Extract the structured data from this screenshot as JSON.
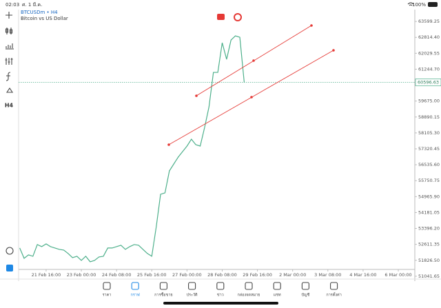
{
  "status_bar": {
    "time": "02:03",
    "date": "ศ. 1 มี.ค.",
    "battery": "100%"
  },
  "toolbar": {
    "timeframe": "H4"
  },
  "chart_data": {
    "type": "line",
    "title": "BTCUSDm • H4",
    "subtitle": "Bitcoin vs US Dollar",
    "color": "#4caf8a",
    "x": [
      "20 Feb 16:00",
      "20 Feb 20:00",
      "21 Feb 00:00",
      "21 Feb 04:00",
      "21 Feb 08:00",
      "21 Feb 12:00",
      "21 Feb 16:00",
      "21 Feb 20:00",
      "22 Feb 00:00",
      "22 Feb 04:00",
      "22 Feb 08:00",
      "22 Feb 12:00",
      "22 Feb 16:00",
      "22 Feb 20:00",
      "23 Feb 00:00",
      "23 Feb 04:00",
      "23 Feb 08:00",
      "23 Feb 12:00",
      "23 Feb 16:00",
      "23 Feb 20:00",
      "24 Feb 00:00",
      "24 Feb 04:00",
      "24 Feb 08:00",
      "24 Feb 12:00",
      "24 Feb 16:00",
      "24 Feb 20:00",
      "25 Feb 00:00",
      "25 Feb 04:00",
      "25 Feb 08:00",
      "25 Feb 12:00",
      "25 Feb 16:00",
      "25 Feb 20:00",
      "26 Feb 00:00",
      "26 Feb 04:00",
      "26 Feb 08:00",
      "26 Feb 12:00",
      "26 Feb 16:00",
      "26 Feb 20:00",
      "27 Feb 00:00",
      "27 Feb 04:00",
      "27 Feb 08:00",
      "27 Feb 12:00",
      "27 Feb 16:00",
      "27 Feb 20:00",
      "28 Feb 00:00",
      "28 Feb 04:00",
      "28 Feb 08:00",
      "28 Feb 12:00",
      "28 Feb 16:00",
      "28 Feb 20:00",
      "29 Feb 00:00",
      "29 Feb 04:00"
    ],
    "values": [
      52433,
      51924,
      52093,
      52025,
      52602,
      52501,
      52636,
      52501,
      52433,
      52365,
      52331,
      52161,
      51958,
      52025,
      51822,
      52025,
      51754,
      51822,
      51992,
      52025,
      52433,
      52433,
      52501,
      52569,
      52365,
      52501,
      52602,
      52569,
      52365,
      52161,
      52025,
      53451,
      55080,
      55148,
      56234,
      56573,
      56913,
      57184,
      57456,
      57795,
      57524,
      57456,
      58372,
      59391,
      61088,
      61088,
      62547,
      61733,
      62683,
      62886,
      62819,
      60597
    ],
    "current_price": 60596.63,
    "xlim": [
      "20 Feb 15:00",
      "6 Mar 15:00"
    ],
    "xticks": [
      "21 Feb 16:00",
      "23 Feb 00:00",
      "24 Feb 08:00",
      "25 Feb 16:00",
      "27 Feb 00:00",
      "28 Feb 08:00",
      "29 Feb 16:00",
      "2 Mar 00:00",
      "3 Mar 08:00",
      "4 Mar 16:00",
      "6 Mar 00:00"
    ],
    "ylim": [
      50800,
      64180
    ],
    "yticks": [
      {
        "value": 63599.25,
        "label": "63599.25"
      },
      {
        "value": 62814.4,
        "label": "62814.40"
      },
      {
        "value": 62029.55,
        "label": "62029.55"
      },
      {
        "value": 61244.7,
        "label": "61244.70"
      },
      {
        "value": 59675,
        "label": "59675.00"
      },
      {
        "value": 58890.15,
        "label": "58890.15"
      },
      {
        "value": 58105.3,
        "label": "58105.30"
      },
      {
        "value": 57320.45,
        "label": "57320.45"
      },
      {
        "value": 56535.6,
        "label": "56535.60"
      },
      {
        "value": 55750.75,
        "label": "55750.75"
      },
      {
        "value": 54965.9,
        "label": "54965.90"
      },
      {
        "value": 54181.05,
        "label": "54181.05"
      },
      {
        "value": 53396.2,
        "label": "53396.20"
      },
      {
        "value": 52611.35,
        "label": "52611.35"
      },
      {
        "value": 51826.5,
        "label": "51826.50"
      },
      {
        "value": 51041.65,
        "label": "51041.65"
      }
    ],
    "grid": false
  },
  "tabs": [
    "ราคา",
    "กราฟ",
    "การซื้อขาย",
    "ประวัติ",
    "ข่าว",
    "กล่องจดหมาย",
    "แชท",
    "บัญชี",
    "การตั้งค่า"
  ],
  "active_tab": 1
}
